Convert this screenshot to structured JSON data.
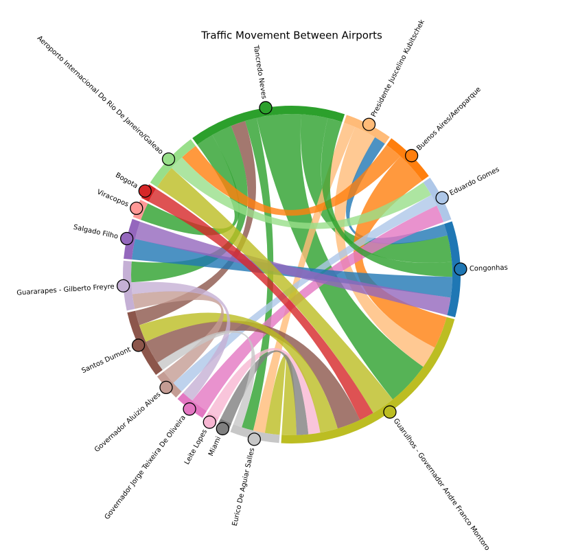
{
  "chart_data": {
    "type": "chord",
    "title": "Traffic Movement Between Airports",
    "nodes": [
      {
        "name": "Tancredo Neves",
        "color": "#2ca02c"
      },
      {
        "name": "Presidente Juscelino Kubitschek",
        "color": "#ffbb78"
      },
      {
        "name": "Buenos Aires/Aeroparque",
        "color": "#ff7f0e"
      },
      {
        "name": "Eduardo Gomes",
        "color": "#aec7e8"
      },
      {
        "name": "Congonhas",
        "color": "#1f77b4"
      },
      {
        "name": "Guarulhos - Governador Andre Franco Montoro",
        "color": "#bcbd22"
      },
      {
        "name": "Eurico De Aguiar Salles",
        "color": "#c7c7c7"
      },
      {
        "name": "Miami",
        "color": "#7f7f7f"
      },
      {
        "name": "Leite Lopes",
        "color": "#f7b6d2"
      },
      {
        "name": "Governador Jorge Teixeira De Oliveira",
        "color": "#e377c2"
      },
      {
        "name": "Governador Aluizio Alves",
        "color": "#c49c94"
      },
      {
        "name": "Santos Dumont",
        "color": "#8c564b"
      },
      {
        "name": "Guararapes - Gilberto Freyre",
        "color": "#c5b0d5"
      },
      {
        "name": "Salgado Filho",
        "color": "#9467bd"
      },
      {
        "name": "Viracopos",
        "color": "#ff9896"
      },
      {
        "name": "Bogota",
        "color": "#d62728"
      },
      {
        "name": "Aeroporto Internacional Do Rio De Janeiro/Galeao",
        "color": "#98df8a"
      }
    ],
    "links": [
      {
        "source": 0,
        "target": 5,
        "value": 30
      },
      {
        "source": 0,
        "target": 4,
        "value": 18
      },
      {
        "source": 0,
        "target": 6,
        "value": 8
      },
      {
        "source": 0,
        "target": 14,
        "value": 12
      },
      {
        "source": 0,
        "target": 12,
        "value": 14
      },
      {
        "source": 11,
        "target": 0,
        "value": 10
      },
      {
        "source": 1,
        "target": 6,
        "value": 8
      },
      {
        "source": 1,
        "target": 5,
        "value": 15
      },
      {
        "source": 4,
        "target": 1,
        "value": 8
      },
      {
        "source": 2,
        "target": 16,
        "value": 12
      },
      {
        "source": 2,
        "target": 5,
        "value": 22
      },
      {
        "source": 16,
        "target": 3,
        "value": 10
      },
      {
        "source": 9,
        "target": 3,
        "value": 12
      },
      {
        "source": 3,
        "target": 10,
        "value": 8
      },
      {
        "source": 4,
        "target": 13,
        "value": 14
      },
      {
        "source": 13,
        "target": 4,
        "value": 12
      },
      {
        "source": 0,
        "target": 4,
        "value": 10
      },
      {
        "source": 5,
        "target": 16,
        "value": 16
      },
      {
        "source": 11,
        "target": 5,
        "value": 16
      },
      {
        "source": 15,
        "target": 5,
        "value": 10
      },
      {
        "source": 5,
        "target": 6,
        "value": 10
      },
      {
        "source": 7,
        "target": 5,
        "value": 8
      },
      {
        "source": 8,
        "target": 5,
        "value": 8
      },
      {
        "source": 5,
        "target": 11,
        "value": 12
      },
      {
        "source": 10,
        "target": 12,
        "value": 10
      },
      {
        "source": 12,
        "target": 9,
        "value": 8
      },
      {
        "source": 6,
        "target": 11,
        "value": 6
      }
    ]
  }
}
